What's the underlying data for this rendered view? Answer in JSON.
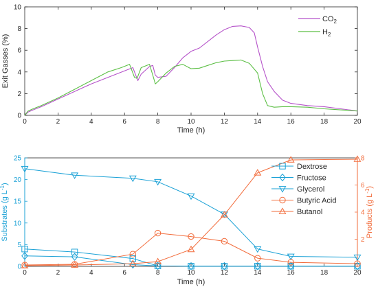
{
  "chart_data": [
    {
      "type": "line",
      "xlabel": "Time (h)",
      "ylabel": "Exit Gasses (%)",
      "xlim": [
        0,
        20
      ],
      "ylim": [
        0,
        10
      ],
      "xticks": [
        0,
        2,
        4,
        6,
        8,
        10,
        12,
        14,
        16,
        18,
        20
      ],
      "yticks": [
        0,
        2,
        4,
        6,
        8,
        10
      ],
      "legend": {
        "position": "top-right"
      },
      "series": [
        {
          "name": "CO2",
          "label_main": "CO",
          "label_sub": "2",
          "color": "#b552c9",
          "x": [
            0,
            0.2,
            0.5,
            1,
            2,
            3,
            4,
            5,
            6,
            6.5,
            6.7,
            6.8,
            7,
            7.5,
            7.7,
            7.85,
            8,
            8.5,
            9,
            9.5,
            10,
            10.5,
            11,
            11.5,
            12,
            12.5,
            13,
            13.5,
            13.8,
            14,
            14.3,
            14.6,
            15,
            15.5,
            16,
            17,
            18,
            19,
            20
          ],
          "y": [
            0,
            0.3,
            0.5,
            0.8,
            1.5,
            2.2,
            2.9,
            3.5,
            4.1,
            4.4,
            3.6,
            3.2,
            3.8,
            4.5,
            4.6,
            3.7,
            3.5,
            3.6,
            4.4,
            5.3,
            5.9,
            6.2,
            6.8,
            7.4,
            7.9,
            8.2,
            8.25,
            8.1,
            7.6,
            6.3,
            4.5,
            3.1,
            2.2,
            1.4,
            1.1,
            0.9,
            0.8,
            0.6,
            0.4
          ]
        },
        {
          "name": "H2",
          "label_main": "H",
          "label_sub": "2",
          "color": "#5cbf45",
          "x": [
            0,
            0.2,
            0.5,
            1,
            2,
            3,
            4,
            5,
            5.8,
            6.3,
            6.6,
            6.75,
            7,
            7.5,
            7.7,
            7.85,
            8,
            8.5,
            9,
            9.5,
            10,
            10.5,
            11,
            11.5,
            12,
            12.5,
            13,
            13.5,
            14,
            14.3,
            14.6,
            15,
            15.5,
            16,
            17,
            18,
            19,
            20
          ],
          "y": [
            0,
            0.4,
            0.6,
            0.9,
            1.6,
            2.4,
            3.2,
            4.0,
            4.4,
            4.7,
            3.5,
            3.4,
            4.4,
            4.7,
            3.7,
            2.9,
            3.1,
            3.9,
            4.5,
            4.7,
            4.3,
            4.35,
            4.6,
            4.85,
            5.0,
            5.05,
            5.1,
            4.8,
            3.9,
            2.0,
            0.9,
            0.75,
            0.8,
            0.8,
            0.75,
            0.6,
            0.5,
            0.4
          ]
        }
      ]
    },
    {
      "type": "line",
      "xlabel": "Time (h)",
      "ylabel_left_main": "Substrates (g L",
      "ylabel_left_sup": "-1",
      "ylabel_right_main": "Products (g L",
      "ylabel_right_sup": "-1",
      "xlim": [
        0,
        20
      ],
      "ylim_left": [
        0,
        25
      ],
      "ylim_right": [
        0,
        8
      ],
      "xticks": [
        0,
        2,
        4,
        6,
        8,
        10,
        12,
        14,
        16,
        18,
        20
      ],
      "yticks_left": [
        0,
        5,
        10,
        15,
        20,
        25
      ],
      "yticks_right": [
        2,
        4,
        6,
        8
      ],
      "legend": {
        "position": "top-right"
      },
      "x": [
        0,
        3,
        6.5,
        8,
        10,
        12,
        14,
        16,
        20
      ],
      "series": [
        {
          "name": "Dextrose",
          "axis": "left",
          "marker": "square",
          "color": "#1aa1d6",
          "values": [
            4.0,
            3.3,
            1.8,
            0.1,
            0.05,
            0.05,
            0.05,
            0.05,
            0.05
          ]
        },
        {
          "name": "Fructose",
          "axis": "left",
          "marker": "diamond",
          "color": "#1aa1d6",
          "values": [
            2.4,
            2.2,
            0.4,
            0.1,
            0.05,
            0.05,
            0.05,
            0.05,
            0.05
          ]
        },
        {
          "name": "Glycerol",
          "axis": "left",
          "marker": "triangle-down",
          "color": "#1aa1d6",
          "values": [
            22.5,
            21.0,
            20.3,
            19.5,
            16.2,
            12.0,
            4.0,
            2.3,
            2.1
          ]
        },
        {
          "name": "Butyric Acid",
          "axis": "right",
          "marker": "circle",
          "color": "#f26b3a",
          "values": [
            0.1,
            0.15,
            0.9,
            2.45,
            2.2,
            1.85,
            0.6,
            0.3,
            0.2
          ]
        },
        {
          "name": "Butanol",
          "axis": "right",
          "marker": "triangle-up",
          "color": "#f26b3a",
          "values": [
            0.05,
            0.1,
            0.2,
            0.35,
            1.25,
            3.8,
            6.9,
            7.85,
            7.9
          ]
        }
      ]
    }
  ]
}
